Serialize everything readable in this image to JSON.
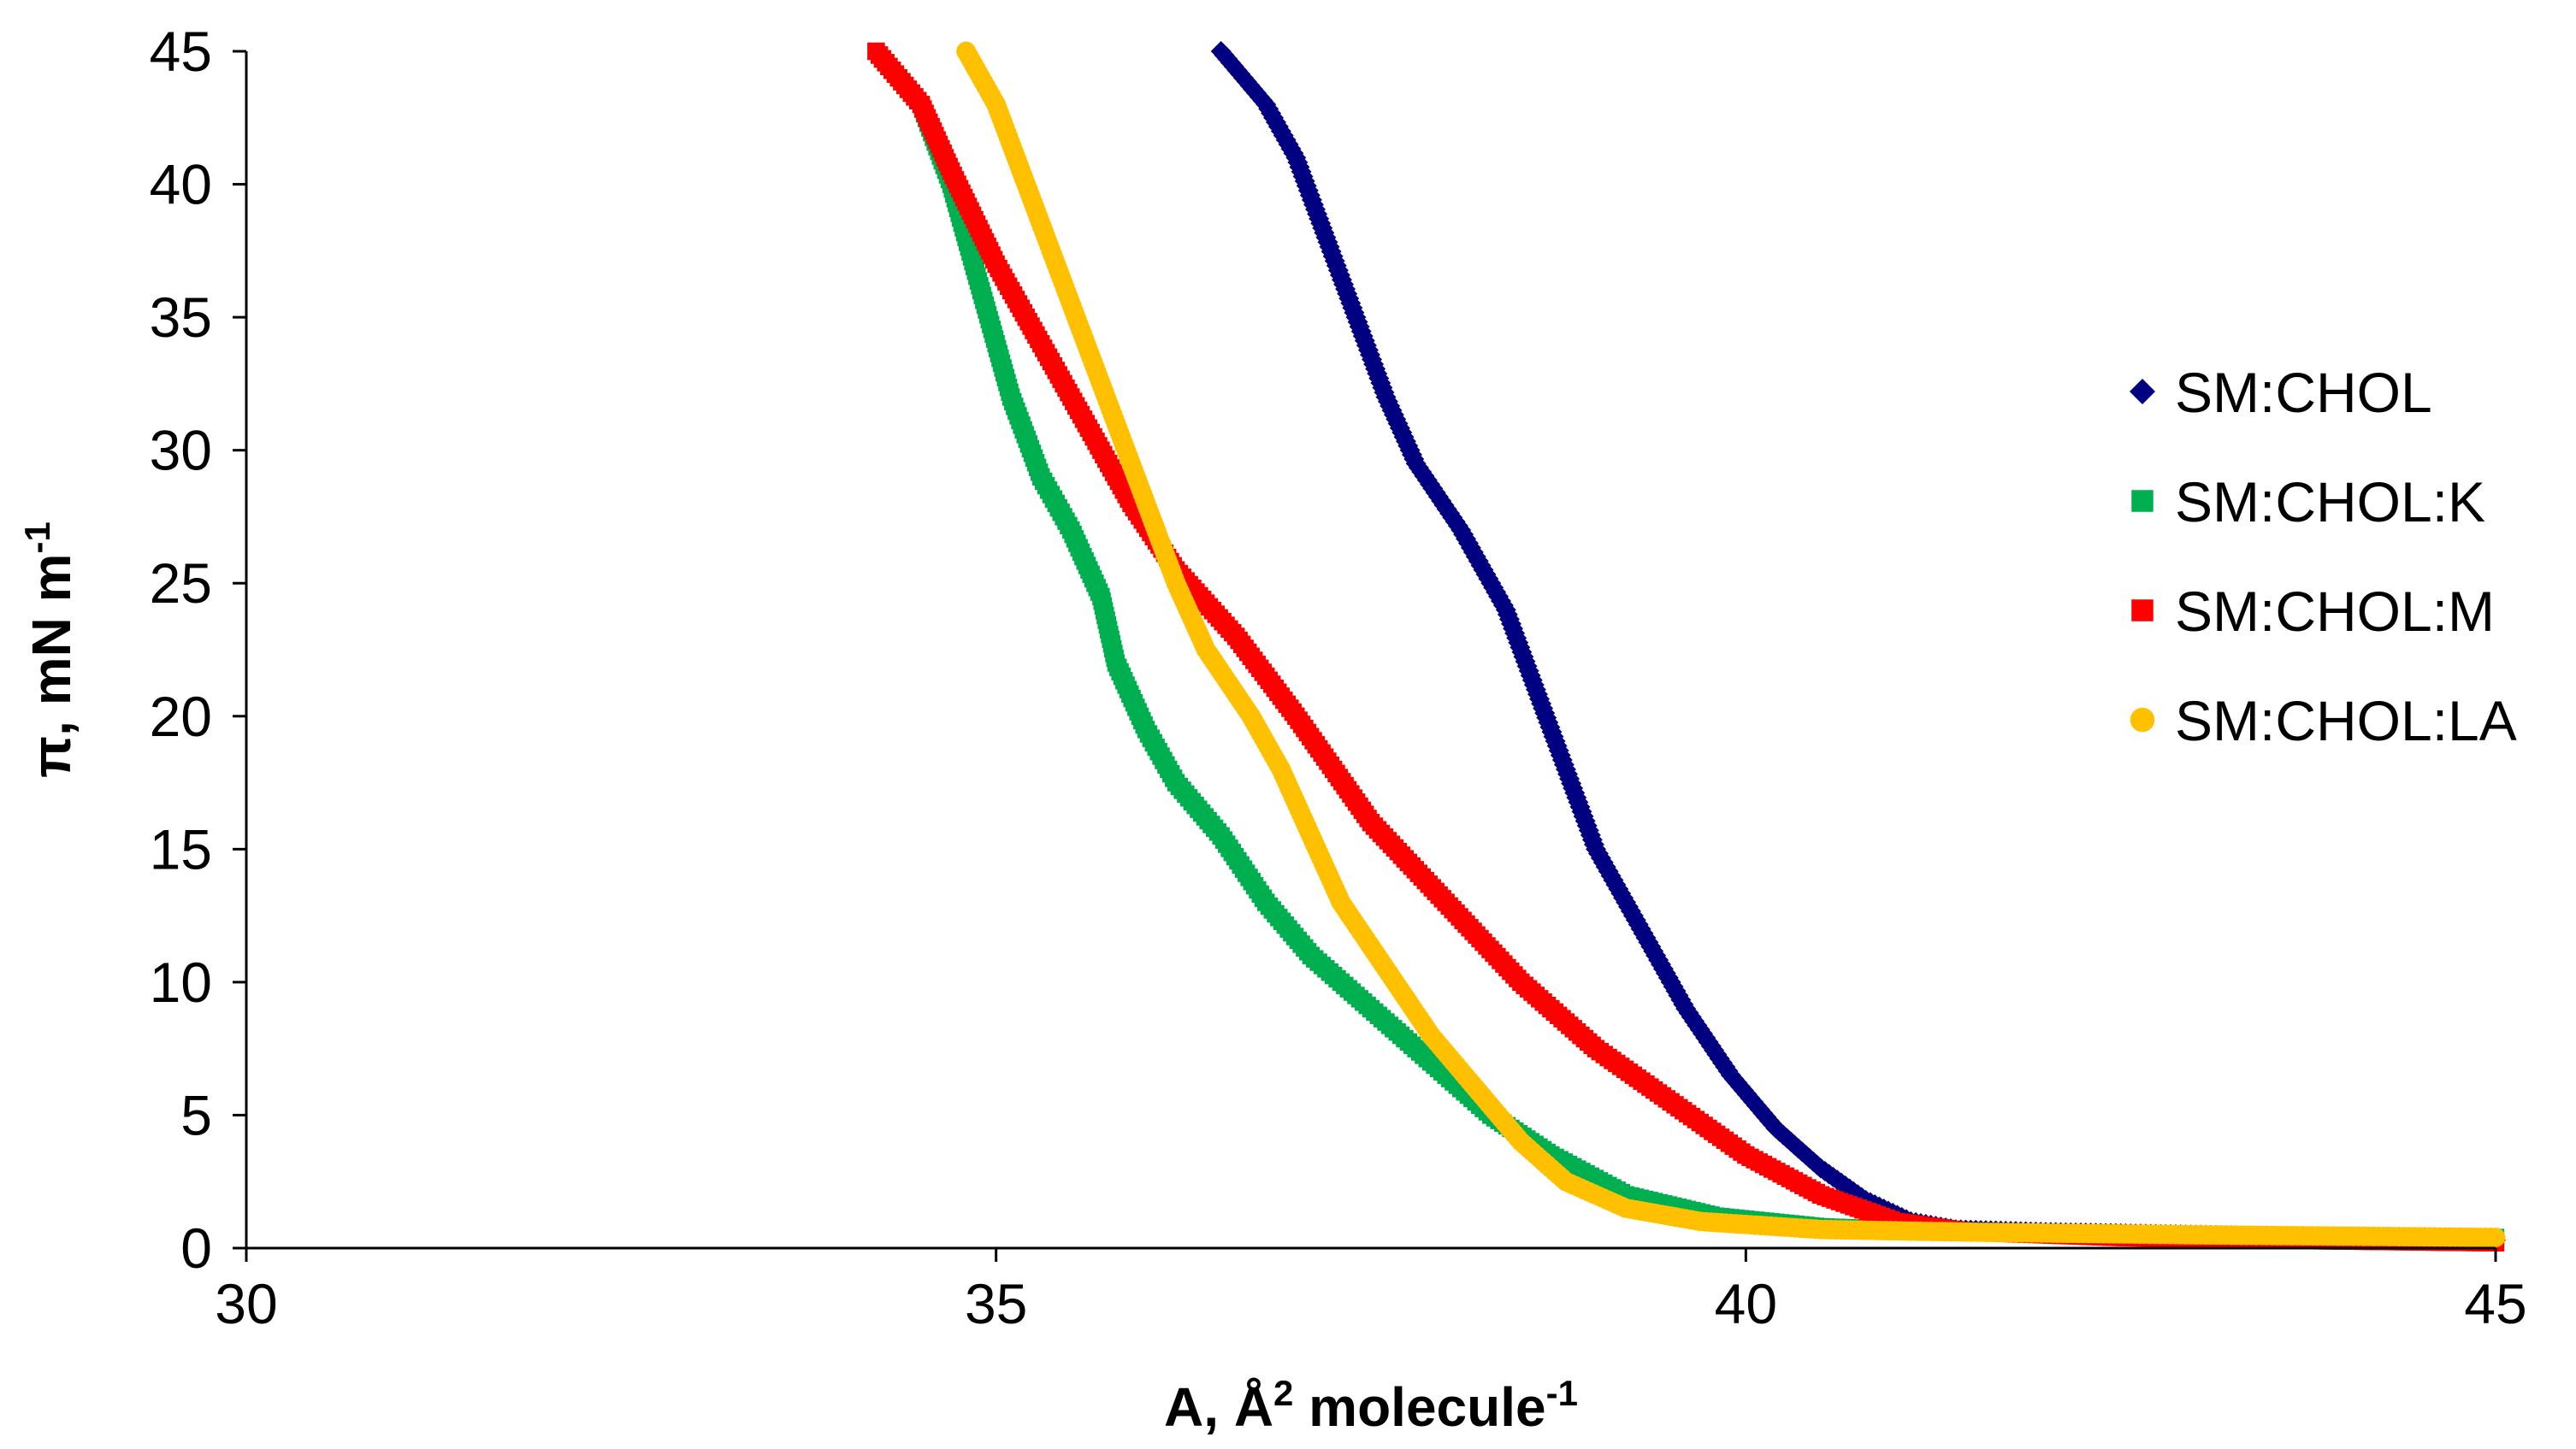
{
  "chart_data": {
    "type": "scatter",
    "title": "",
    "xlabel": {
      "main": "A, Å",
      "sup1": "2",
      "mid": " molecule",
      "sup2": "-1"
    },
    "ylabel": {
      "main": "π, mN m",
      "sup": "-1"
    },
    "xlim": [
      30,
      45
    ],
    "ylim": [
      0,
      45
    ],
    "x_ticks": [
      "30",
      "35",
      "40",
      "45"
    ],
    "y_ticks": [
      "0",
      "5",
      "10",
      "15",
      "20",
      "25",
      "30",
      "35",
      "40",
      "45"
    ],
    "grid": false,
    "legend_position": "right",
    "series": [
      {
        "name": "SM:CHOL",
        "color": "#000080",
        "marker": "diamond",
        "points": [
          [
            36.5,
            45
          ],
          [
            36.8,
            43
          ],
          [
            37.0,
            41
          ],
          [
            37.2,
            38
          ],
          [
            37.4,
            35
          ],
          [
            37.6,
            32
          ],
          [
            37.8,
            29.5
          ],
          [
            38.1,
            27
          ],
          [
            38.4,
            24
          ],
          [
            38.6,
            21
          ],
          [
            38.8,
            18
          ],
          [
            39.0,
            15
          ],
          [
            39.3,
            12
          ],
          [
            39.6,
            9
          ],
          [
            39.9,
            6.5
          ],
          [
            40.2,
            4.5
          ],
          [
            40.5,
            3
          ],
          [
            40.8,
            1.8
          ],
          [
            41.1,
            1.0
          ],
          [
            41.4,
            0.7
          ],
          [
            42.0,
            0.6
          ],
          [
            43.0,
            0.5
          ],
          [
            44.0,
            0.4
          ],
          [
            45.0,
            0.3
          ]
        ]
      },
      {
        "name": "SM:CHOL:K",
        "color": "#00B050",
        "marker": "square",
        "points": [
          [
            34.2,
            45
          ],
          [
            34.5,
            43
          ],
          [
            34.7,
            40
          ],
          [
            34.9,
            36
          ],
          [
            35.1,
            32
          ],
          [
            35.3,
            29
          ],
          [
            35.5,
            27
          ],
          [
            35.7,
            24.5
          ],
          [
            35.8,
            22
          ],
          [
            36.0,
            19.5
          ],
          [
            36.2,
            17.5
          ],
          [
            36.5,
            15.5
          ],
          [
            36.8,
            13
          ],
          [
            37.1,
            11
          ],
          [
            37.5,
            9
          ],
          [
            37.9,
            7
          ],
          [
            38.3,
            5
          ],
          [
            38.7,
            3.5
          ],
          [
            39.2,
            2.0
          ],
          [
            39.8,
            1.2
          ],
          [
            40.5,
            0.8
          ],
          [
            41.5,
            0.6
          ],
          [
            43.0,
            0.5
          ],
          [
            45.0,
            0.4
          ]
        ]
      },
      {
        "name": "SM:CHOL:M",
        "color": "#FF0000",
        "marker": "square",
        "points": [
          [
            34.2,
            45
          ],
          [
            34.5,
            43
          ],
          [
            34.7,
            40.5
          ],
          [
            35.0,
            37
          ],
          [
            35.3,
            34
          ],
          [
            35.6,
            31
          ],
          [
            35.9,
            28
          ],
          [
            36.2,
            25.5
          ],
          [
            36.6,
            23
          ],
          [
            37.0,
            20
          ],
          [
            37.5,
            16
          ],
          [
            38.0,
            13
          ],
          [
            38.5,
            10
          ],
          [
            39.0,
            7.5
          ],
          [
            39.5,
            5.5
          ],
          [
            40.0,
            3.5
          ],
          [
            40.5,
            2.0
          ],
          [
            41.0,
            1.0
          ],
          [
            41.5,
            0.6
          ],
          [
            42.5,
            0.4
          ],
          [
            43.5,
            0.3
          ],
          [
            45.0,
            0.2
          ]
        ]
      },
      {
        "name": "SM:CHOL:LA",
        "color": "#FFC000",
        "marker": "circle",
        "points": [
          [
            34.8,
            45
          ],
          [
            35.0,
            43
          ],
          [
            35.2,
            40
          ],
          [
            35.4,
            37
          ],
          [
            35.6,
            34
          ],
          [
            35.8,
            31
          ],
          [
            36.0,
            28
          ],
          [
            36.2,
            25
          ],
          [
            36.4,
            22.5
          ],
          [
            36.7,
            20
          ],
          [
            36.9,
            18
          ],
          [
            37.1,
            15.5
          ],
          [
            37.3,
            13
          ],
          [
            37.6,
            10.5
          ],
          [
            37.9,
            8
          ],
          [
            38.2,
            6
          ],
          [
            38.5,
            4
          ],
          [
            38.8,
            2.5
          ],
          [
            39.2,
            1.5
          ],
          [
            39.7,
            1.0
          ],
          [
            40.5,
            0.7
          ],
          [
            41.5,
            0.6
          ],
          [
            43.0,
            0.5
          ],
          [
            45.0,
            0.4
          ]
        ]
      }
    ]
  }
}
